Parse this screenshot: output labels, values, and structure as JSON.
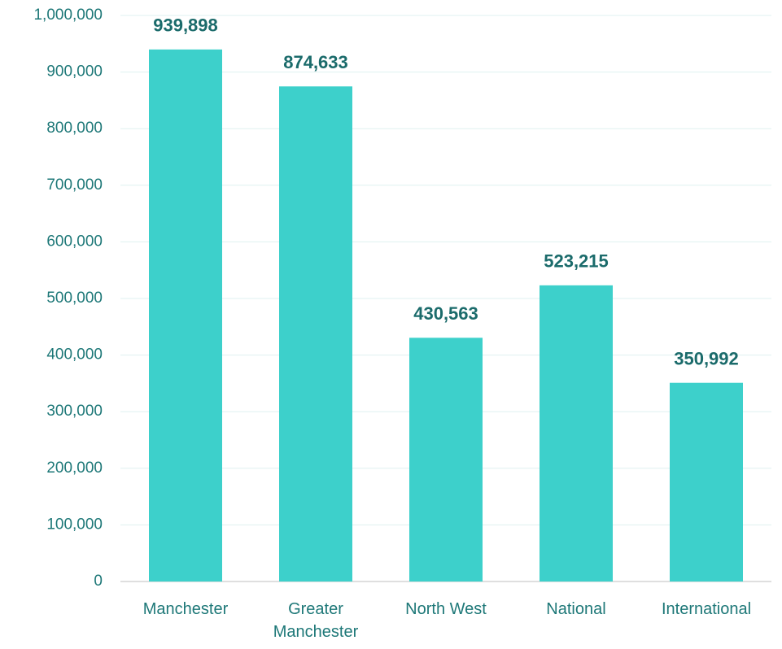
{
  "chart_data": {
    "type": "bar",
    "categories": [
      "Manchester",
      "Greater Manchester",
      "North West",
      "National",
      "International"
    ],
    "values": [
      939898,
      874633,
      430563,
      523215,
      350992
    ],
    "value_labels": [
      "939,898",
      "874,633",
      "430,563",
      "523,215",
      "350,992"
    ],
    "color": "#3dd0cb",
    "ylim": [
      0,
      1000000
    ],
    "yticks": [
      0,
      {
        "value": 100000,
        "label": "100,000"
      },
      {
        "value": 200000,
        "label": "200,000"
      },
      {
        "value": 300000,
        "label": "300,000"
      },
      {
        "value": 400000,
        "label": "400,000"
      },
      {
        "value": 500000,
        "label": "500,000"
      },
      {
        "value": 600000,
        "label": "600,000"
      },
      {
        "value": 700000,
        "label": "700,000"
      },
      {
        "value": 800000,
        "label": "800,000"
      },
      {
        "value": 900000,
        "label": "900,000"
      },
      {
        "value": 1000000,
        "label": "1,000,000"
      }
    ],
    "grid": true
  }
}
